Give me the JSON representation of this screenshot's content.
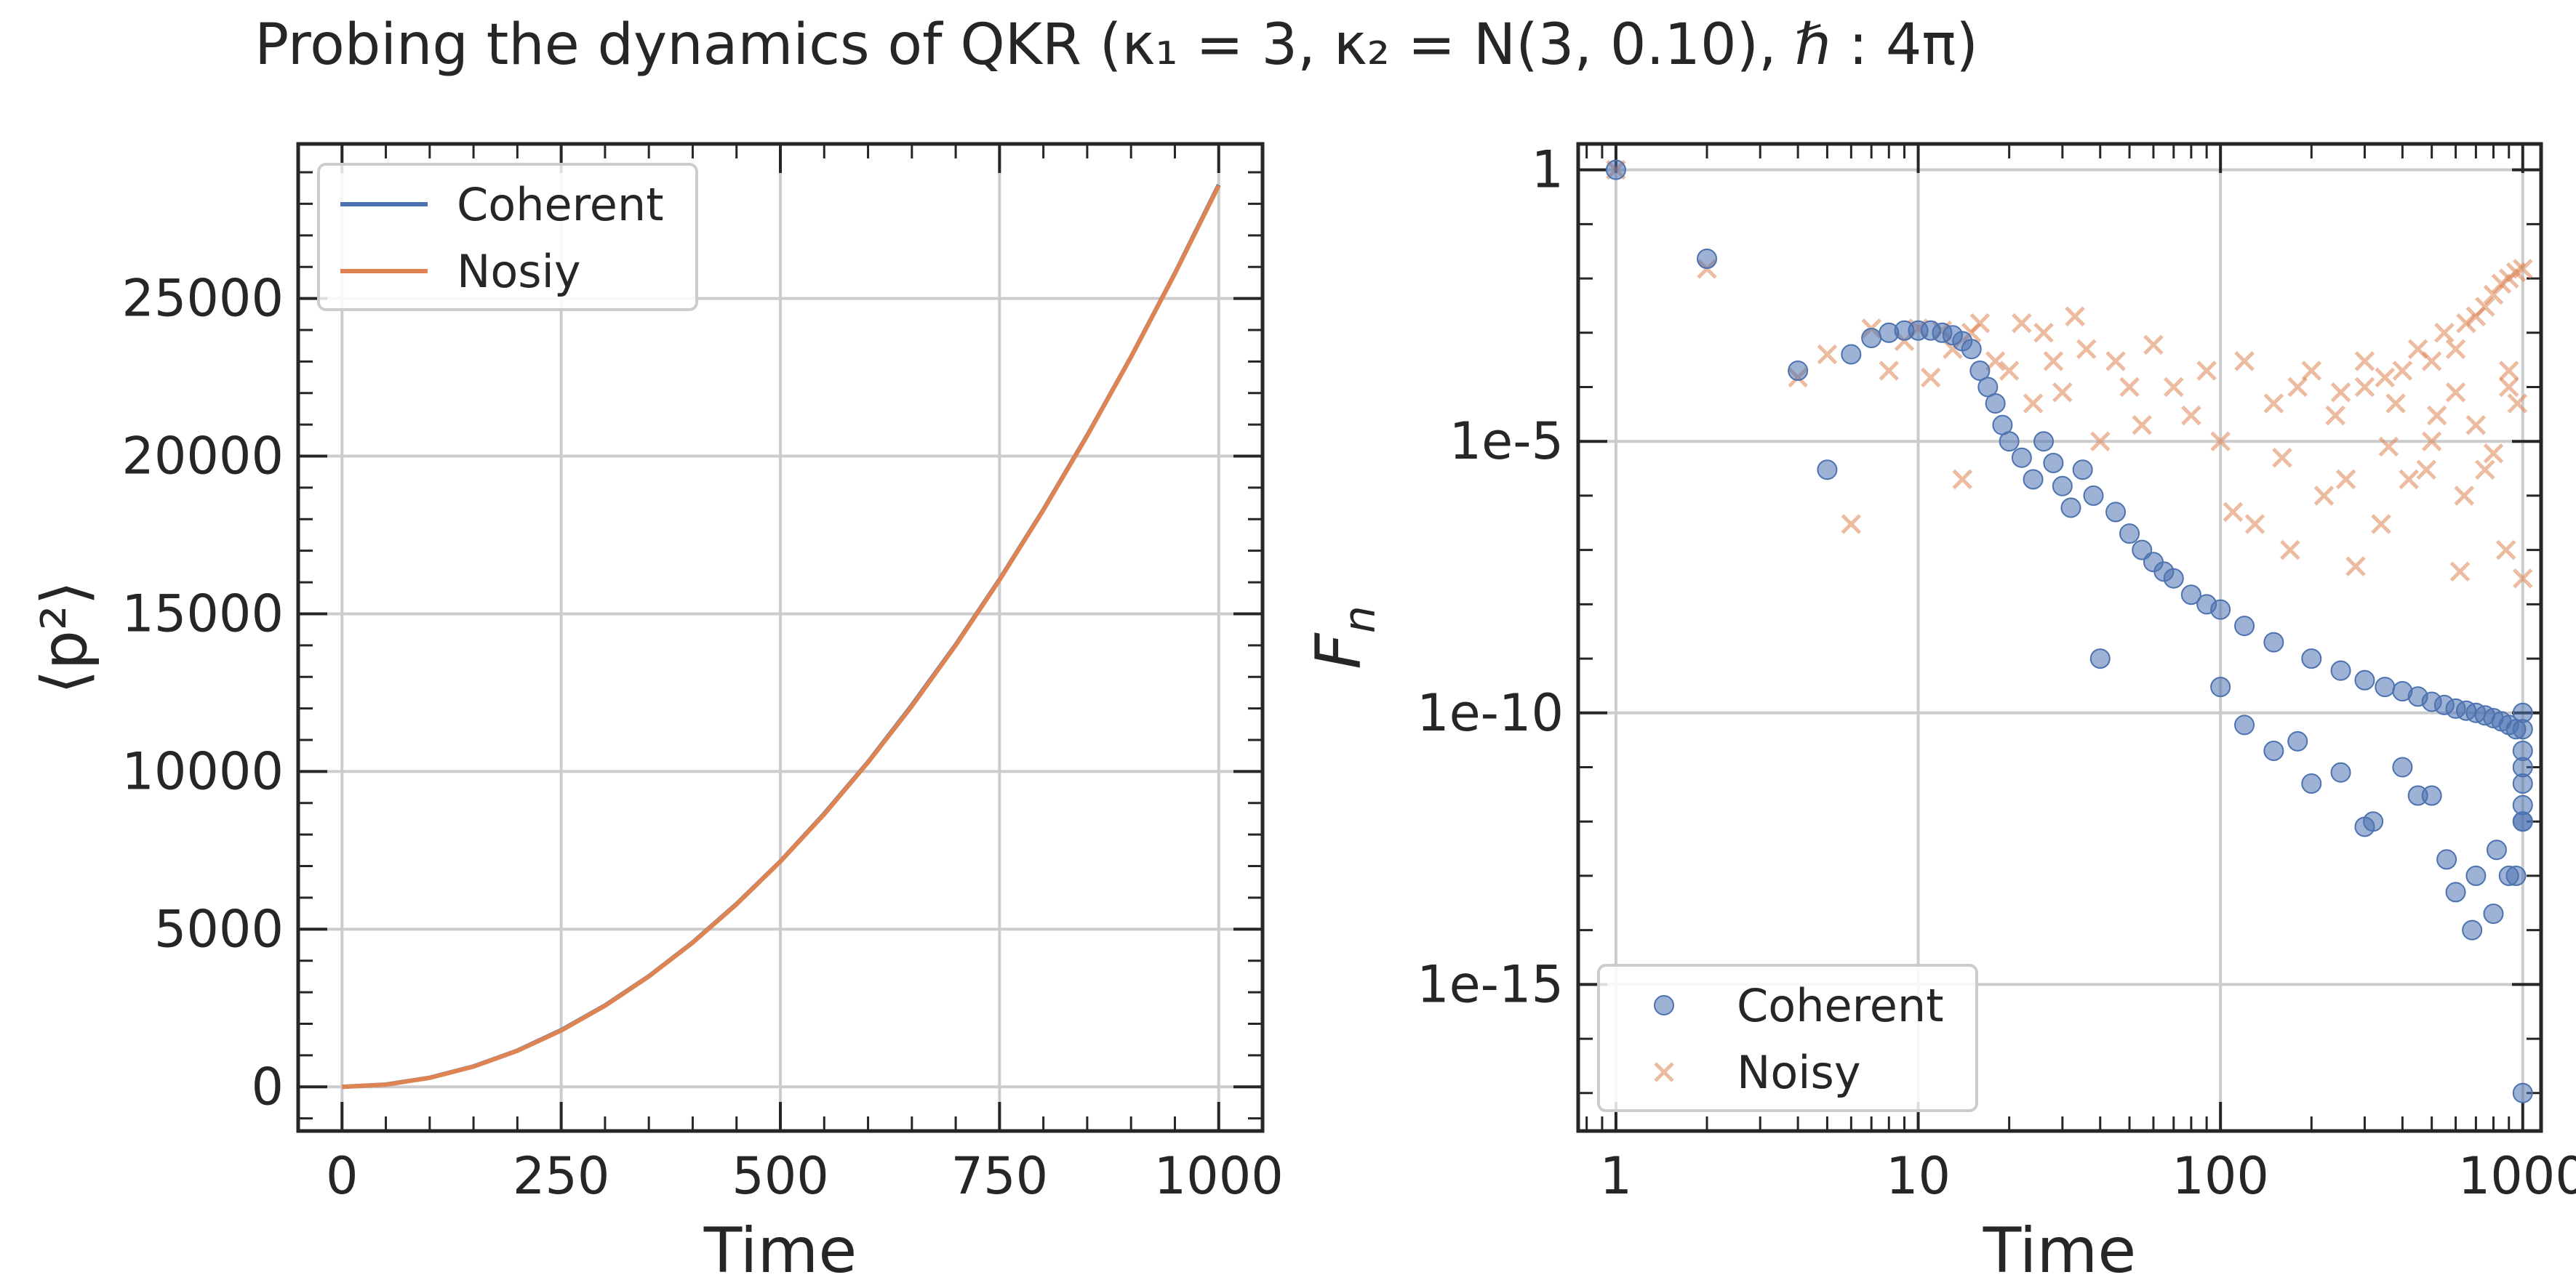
{
  "figure": {
    "title": "Probing the dynamics of QKR (κ₁ = 3, κ₂ = N(3, 0.10), ℏ : 4π)"
  },
  "chart_data": [
    {
      "type": "line",
      "xlabel": "Time",
      "ylabel": "⟨p²⟩",
      "xlim": [
        -50,
        1050
      ],
      "ylim": [
        -1400,
        29900
      ],
      "xticks": [
        0,
        250,
        500,
        750,
        1000
      ],
      "xtick_labels": [
        "0",
        "250",
        "500",
        "750",
        "1000"
      ],
      "yticks": [
        0,
        5000,
        10000,
        15000,
        20000,
        25000
      ],
      "ytick_labels": [
        "0",
        "5000",
        "10000",
        "15000",
        "20000",
        "25000"
      ],
      "grid": true,
      "legend": "top-left",
      "series": [
        {
          "name": "Coherent",
          "color": "#4c72b0",
          "x": [
            0,
            50,
            100,
            150,
            200,
            250,
            300,
            350,
            400,
            450,
            500,
            550,
            600,
            650,
            700,
            750,
            800,
            850,
            900,
            950,
            1000
          ],
          "y": [
            0,
            72,
            290,
            650,
            1150,
            1800,
            2580,
            3510,
            4580,
            5800,
            7150,
            8660,
            10300,
            12100,
            14020,
            16090,
            18300,
            20660,
            23150,
            25800,
            28600
          ]
        },
        {
          "name": "Nosiy",
          "color": "#dd8452",
          "x": [
            0,
            50,
            100,
            150,
            200,
            250,
            300,
            350,
            400,
            450,
            500,
            550,
            600,
            650,
            700,
            750,
            800,
            850,
            900,
            950,
            1000
          ],
          "y": [
            0,
            71,
            286,
            643,
            1143,
            1786,
            2572,
            3500,
            4572,
            5786,
            7143,
            8643,
            10286,
            12072,
            14000,
            16072,
            18286,
            20643,
            23143,
            25786,
            28572
          ]
        }
      ]
    },
    {
      "type": "scatter",
      "xlabel": "Time",
      "ylabel": "F_n",
      "x_scale": "log",
      "y_scale": "log",
      "xlim": [
        0.75,
        1150
      ],
      "ylim": [
        2e-18,
        3
      ],
      "xticks": [
        1,
        10,
        100,
        1000
      ],
      "xtick_labels": [
        "1",
        "10",
        "100",
        "1000"
      ],
      "yticks": [
        1,
        1e-05,
        1e-10,
        1e-15
      ],
      "ytick_labels": [
        "1",
        "1e-5",
        "1e-10",
        "1e-15"
      ],
      "grid": true,
      "legend": "bottom-left",
      "series": [
        {
          "name": "Coherent",
          "marker": "circle",
          "color": "#4c72b0",
          "x": [
            1,
            2,
            4,
            5,
            6,
            7,
            8,
            9,
            10,
            11,
            12,
            13,
            14,
            15,
            16,
            17,
            18,
            19,
            20,
            22,
            24,
            26,
            28,
            30,
            32,
            35,
            38,
            40,
            45,
            50,
            55,
            60,
            65,
            70,
            80,
            90,
            100,
            120,
            150,
            200,
            250,
            300,
            350,
            400,
            450,
            500,
            550,
            600,
            650,
            700,
            750,
            800,
            850,
            900,
            950,
            1000,
            100,
            150,
            200,
            300,
            400,
            500,
            600,
            700,
            800,
            900,
            1000,
            120,
            180,
            250,
            320,
            450,
            560,
            680,
            820,
            950,
            1000,
            1000,
            1000,
            1000,
            1000,
            1000,
            1000
          ],
          "y": [
            1,
            0.023,
            0.0002,
            3e-06,
            0.0004,
            0.0008,
            0.001,
            0.0011,
            0.0011,
            0.0011,
            0.001,
            0.0009,
            0.0007,
            0.0005,
            0.0002,
            0.0001,
            5e-05,
            2e-05,
            1e-05,
            5e-06,
            2e-06,
            1e-05,
            4e-06,
            1.5e-06,
            6e-07,
            3e-06,
            1e-06,
            1e-09,
            5e-07,
            2e-07,
            1e-07,
            6e-08,
            4e-08,
            3e-08,
            1.5e-08,
            1e-08,
            8e-09,
            4e-09,
            2e-09,
            1e-09,
            6e-10,
            4e-10,
            3e-10,
            2.5e-10,
            2e-10,
            1.6e-10,
            1.4e-10,
            1.2e-10,
            1.1e-10,
            1e-10,
            9e-11,
            8e-11,
            7e-11,
            6e-11,
            5e-11,
            1e-10,
            3e-10,
            2e-11,
            5e-12,
            8e-13,
            1e-11,
            3e-12,
            5e-14,
            1e-13,
            2e-14,
            1e-13,
            1e-12,
            6e-11,
            3e-11,
            8e-12,
            1e-12,
            3e-12,
            2e-13,
            1e-14,
            3e-13,
            1e-13,
            5e-11,
            2e-11,
            1e-11,
            5e-12,
            2e-12,
            1e-12,
            1e-17
          ]
        },
        {
          "name": "Noisy",
          "marker": "x",
          "color": "#dd8452",
          "x": [
            1,
            2,
            4,
            5,
            6,
            7,
            8,
            9,
            10,
            11,
            12,
            13,
            14,
            15,
            16,
            18,
            20,
            22,
            24,
            26,
            28,
            30,
            33,
            36,
            40,
            45,
            50,
            55,
            60,
            70,
            80,
            90,
            100,
            120,
            150,
            180,
            200,
            250,
            300,
            350,
            400,
            450,
            500,
            550,
            600,
            650,
            700,
            750,
            800,
            850,
            900,
            950,
            1000,
            130,
            170,
            220,
            280,
            340,
            420,
            500,
            620,
            750,
            880,
            1000,
            160,
            260,
            380,
            520,
            700,
            900,
            110,
            240,
            360,
            480,
            640,
            800,
            960,
            300,
            600,
            900
          ],
          "y": [
            1,
            0.015,
            0.00015,
            0.0004,
            3e-07,
            0.0012,
            0.0002,
            0.0007,
            0.0012,
            0.00015,
            0.0011,
            0.0005,
            2e-06,
            0.001,
            0.0015,
            0.0003,
            0.0002,
            0.0015,
            5e-05,
            0.001,
            0.0003,
            8e-05,
            0.002,
            0.0005,
            1e-05,
            0.0003,
            0.0001,
            2e-05,
            0.0006,
            0.0001,
            3e-05,
            0.0002,
            1e-05,
            0.0003,
            5e-05,
            0.0001,
            0.0002,
            8e-05,
            0.0003,
            0.00015,
            0.0002,
            0.0005,
            0.0003,
            0.001,
            0.0005,
            0.0015,
            0.002,
            0.003,
            0.005,
            0.008,
            0.01,
            0.013,
            0.015,
            3e-07,
            1e-07,
            1e-06,
            5e-08,
            3e-07,
            2e-06,
            1e-05,
            4e-08,
            3e-06,
            1e-07,
            3e-08,
            5e-06,
            2e-06,
            5e-05,
            3e-05,
            2e-05,
            0.0001,
            5e-07,
            3e-05,
            8e-06,
            3e-06,
            1e-06,
            6e-06,
            5e-05,
            0.0001,
            8e-05,
            0.0002
          ]
        }
      ]
    }
  ]
}
